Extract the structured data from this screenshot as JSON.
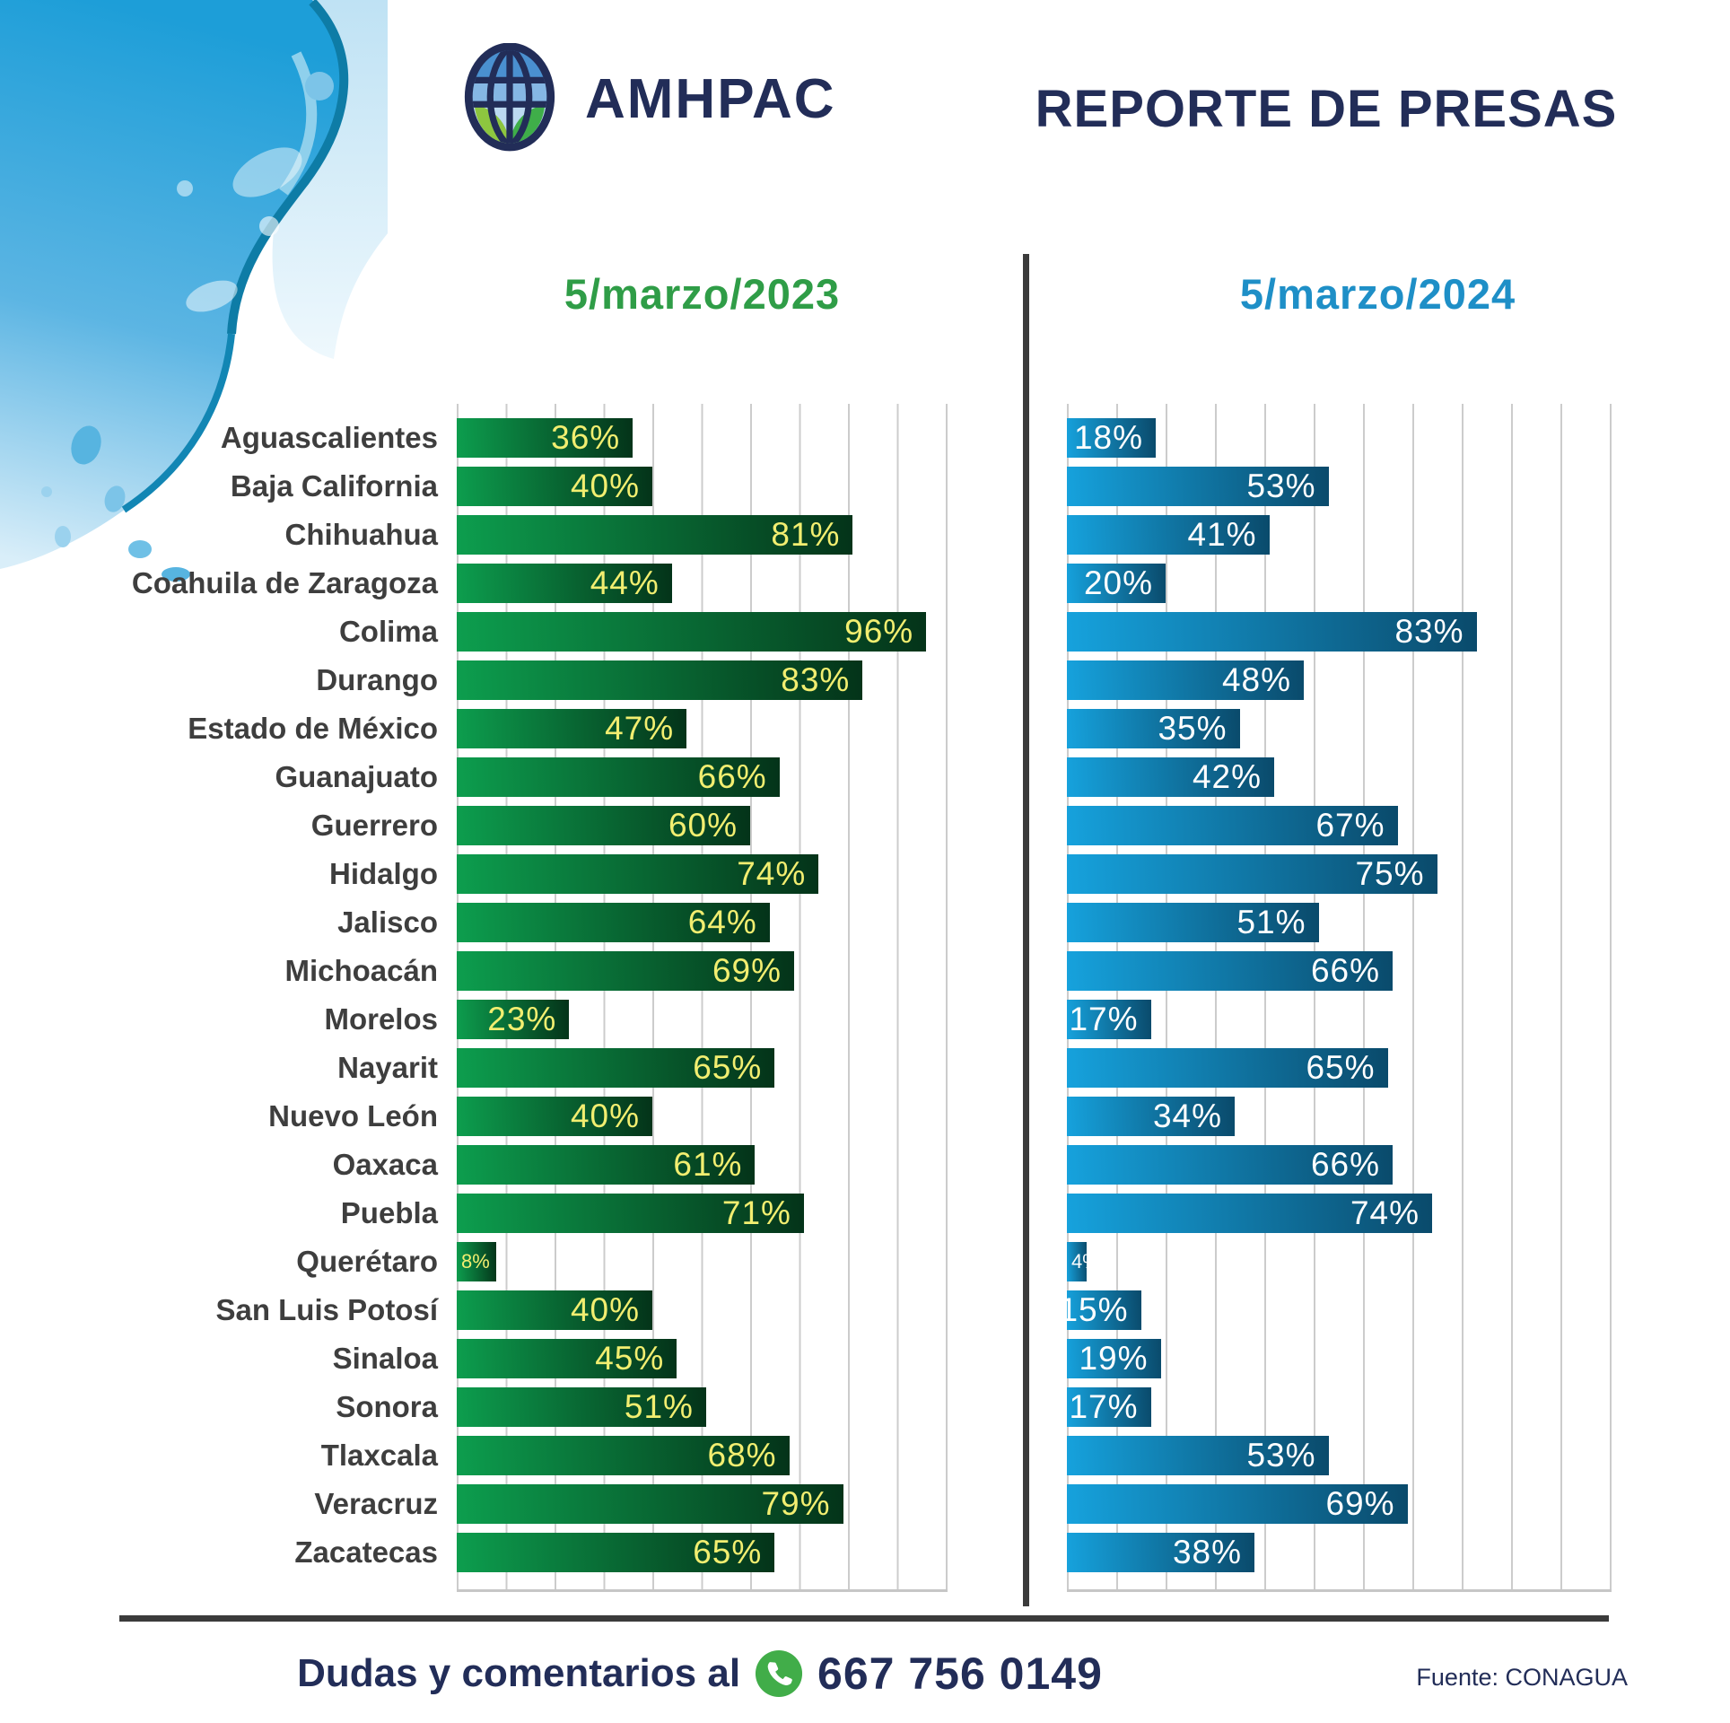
{
  "header": {
    "brand": "AMHPAC",
    "title": "REPORTE DE PRESAS"
  },
  "columns": {
    "left": {
      "date_prefix": "5/marzo/",
      "year": "2023"
    },
    "right": {
      "date_prefix": "5/marzo/",
      "year": "2024"
    }
  },
  "chart_data": {
    "type": "bar",
    "orientation": "horizontal",
    "categories": [
      "Aguascalientes",
      "Baja California",
      "Chihuahua",
      "Coahuila de Zaragoza",
      "Colima",
      "Durango",
      "Estado de México",
      "Guanajuato",
      "Guerrero",
      "Hidalgo",
      "Jalisco",
      "Michoacán",
      "Morelos",
      "Nayarit",
      "Nuevo León",
      "Oaxaca",
      "Puebla",
      "Querétaro",
      "San Luis Potosí",
      "Sinaloa",
      "Sonora",
      "Tlaxcala",
      "Veracruz",
      "Zacatecas"
    ],
    "series": [
      {
        "name": "5/marzo/2023",
        "year": "2023",
        "values": [
          36,
          40,
          81,
          44,
          96,
          83,
          47,
          66,
          60,
          74,
          64,
          69,
          23,
          65,
          40,
          61,
          71,
          8,
          40,
          45,
          51,
          68,
          79,
          65
        ],
        "bar_color_start": "#0d9e4e",
        "bar_color_end": "#043319",
        "value_label_color": "#f2ee70"
      },
      {
        "name": "5/marzo/2024",
        "year": "2024",
        "values": [
          18,
          53,
          41,
          20,
          83,
          48,
          35,
          42,
          67,
          75,
          51,
          66,
          17,
          65,
          34,
          66,
          74,
          4,
          15,
          19,
          17,
          53,
          69,
          38
        ],
        "bar_color_start": "#16a2dd",
        "bar_color_end": "#0a4a6b",
        "value_label_color": "#ffffff"
      }
    ],
    "value_suffix": "%",
    "xlim": [
      0,
      100
    ],
    "gridline_interval": 10,
    "grid": true,
    "legend_position": "column-headers"
  },
  "footer": {
    "contact_label": "Dudas y comentarios al",
    "phone": "667 756 0149",
    "source": "Fuente: CONAGUA"
  },
  "colors": {
    "navy": "#222d58",
    "label_gray": "#3e3e3e",
    "green_header": "#2f9d47",
    "blue_header": "#1e8fc7",
    "grid": "#cccccc",
    "rule": "#3b3b3b",
    "whatsapp_green": "#41ad49"
  }
}
